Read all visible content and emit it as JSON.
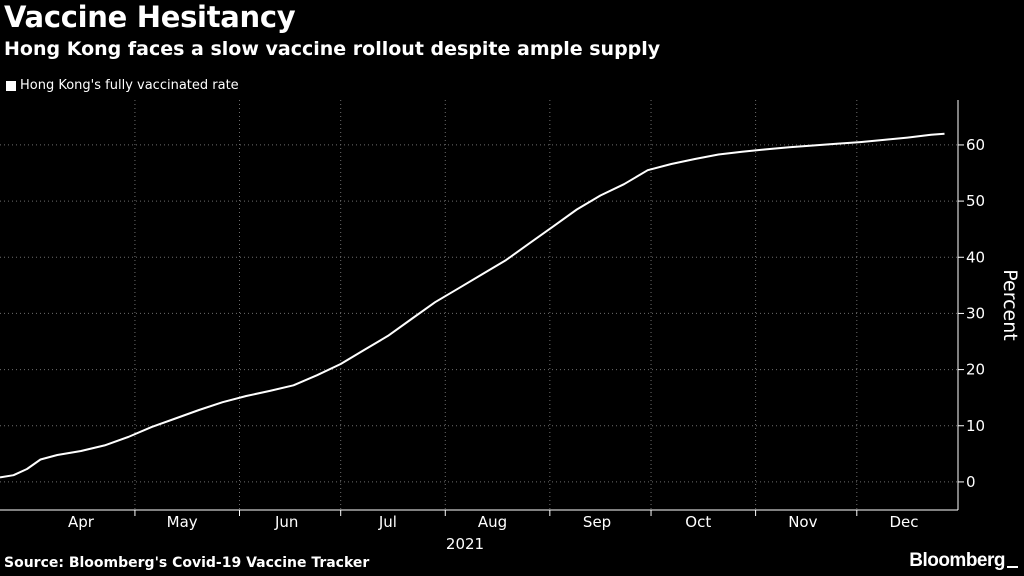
{
  "header": {
    "title": "Vaccine Hesitancy",
    "subtitle": "Hong Kong faces a slow vaccine rollout despite ample supply"
  },
  "footer": {
    "source": "Source: Bloomberg's Covid-19 Vaccine Tracker",
    "brand": "Bloomberg"
  },
  "colors": {
    "background": "#000000",
    "line": "#ffffff",
    "grid": "#6e6e6e"
  },
  "chart_data": {
    "type": "line",
    "title": "Vaccine Hesitancy",
    "subtitle": "Hong Kong faces a slow vaccine rollout despite ample supply",
    "ylabel": "Percent",
    "xlabel": "",
    "year_label": "2021",
    "ylim": [
      -5,
      68
    ],
    "yticks": [
      0,
      10,
      20,
      30,
      40,
      50,
      60
    ],
    "xlim": [
      "2021-03-22",
      "2021-12-31"
    ],
    "month_ticks": [
      {
        "label": "Apr",
        "date": "2021-04-15"
      },
      {
        "label": "May",
        "date": "2021-05-15"
      },
      {
        "label": "Jun",
        "date": "2021-06-15"
      },
      {
        "label": "Jul",
        "date": "2021-07-15"
      },
      {
        "label": "Aug",
        "date": "2021-08-15"
      },
      {
        "label": "Sep",
        "date": "2021-09-15"
      },
      {
        "label": "Oct",
        "date": "2021-10-15"
      },
      {
        "label": "Nov",
        "date": "2021-11-15"
      },
      {
        "label": "Dec",
        "date": "2021-12-15"
      }
    ],
    "grid_dates": [
      "2021-05-01",
      "2021-06-01",
      "2021-07-01",
      "2021-08-01",
      "2021-09-01",
      "2021-10-01",
      "2021-11-01",
      "2021-12-01"
    ],
    "grid": true,
    "legend_position": "top-left",
    "series": [
      {
        "name": "Hong Kong's fully vaccinated rate",
        "x": [
          "2021-03-22",
          "2021-03-26",
          "2021-03-30",
          "2021-04-03",
          "2021-04-08",
          "2021-04-15",
          "2021-04-22",
          "2021-04-29",
          "2021-05-06",
          "2021-05-13",
          "2021-05-20",
          "2021-05-27",
          "2021-06-03",
          "2021-06-10",
          "2021-06-17",
          "2021-06-24",
          "2021-07-01",
          "2021-07-08",
          "2021-07-15",
          "2021-07-22",
          "2021-07-29",
          "2021-08-05",
          "2021-08-12",
          "2021-08-19",
          "2021-08-26",
          "2021-09-02",
          "2021-09-09",
          "2021-09-16",
          "2021-09-23",
          "2021-09-30",
          "2021-10-07",
          "2021-10-14",
          "2021-10-21",
          "2021-10-28",
          "2021-11-04",
          "2021-11-11",
          "2021-11-18",
          "2021-11-25",
          "2021-12-02",
          "2021-12-09",
          "2021-12-16",
          "2021-12-23",
          "2021-12-27"
        ],
        "y": [
          0.8,
          1.2,
          2.3,
          4.0,
          4.8,
          5.5,
          6.5,
          8.0,
          9.8,
          11.3,
          12.8,
          14.2,
          15.3,
          16.2,
          17.2,
          19.0,
          21.0,
          23.5,
          26.0,
          29.0,
          32.0,
          34.5,
          37.0,
          39.5,
          42.5,
          45.5,
          48.5,
          51.0,
          53.0,
          55.5,
          56.6,
          57.5,
          58.3,
          58.8,
          59.2,
          59.6,
          59.9,
          60.2,
          60.5,
          60.9,
          61.3,
          61.8,
          62.0
        ]
      }
    ]
  }
}
